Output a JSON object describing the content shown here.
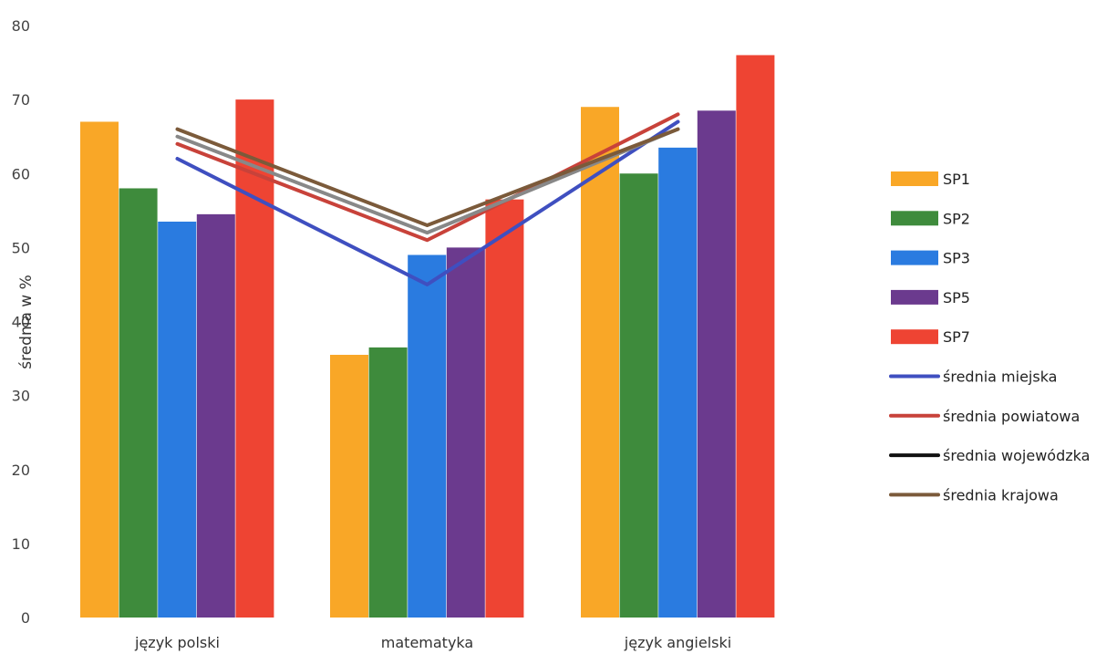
{
  "chart_data": {
    "type": "bar",
    "title": "",
    "xlabel": "",
    "ylabel": "średnia w %",
    "ylim": [
      0,
      80
    ],
    "yticks": [
      0,
      10,
      20,
      30,
      40,
      50,
      60,
      70,
      80
    ],
    "grid": false,
    "legend_position": "right",
    "categories": [
      "język polski",
      "matematyka",
      "język angielski"
    ],
    "series": [
      {
        "name": "SP1",
        "kind": "bar",
        "color": "#F9A727",
        "values": [
          67,
          35.5,
          69
        ]
      },
      {
        "name": "SP2",
        "kind": "bar",
        "color": "#3E8B3C",
        "values": [
          58,
          36.5,
          60
        ]
      },
      {
        "name": "SP3",
        "kind": "bar",
        "color": "#2A7BE0",
        "values": [
          53.5,
          49,
          63.5
        ]
      },
      {
        "name": "SP5",
        "kind": "bar",
        "color": "#6B3A8E",
        "values": [
          54.5,
          50,
          68.5
        ]
      },
      {
        "name": "SP7",
        "kind": "bar",
        "color": "#EE4433",
        "values": [
          70,
          56.5,
          76
        ]
      },
      {
        "name": "średnia miejska",
        "kind": "line",
        "color": "#3F4FC0",
        "values": [
          62,
          45,
          67
        ]
      },
      {
        "name": "średnia powiatowa",
        "kind": "line",
        "color": "#C8423A",
        "values": [
          64,
          51,
          68
        ]
      },
      {
        "name": "średnia wojewódzka",
        "kind": "line",
        "color": "#888888",
        "values": [
          65,
          52,
          66
        ]
      },
      {
        "name": "średnia krajowa",
        "kind": "line",
        "color": "#7B5A3A",
        "values": [
          66,
          53,
          66
        ]
      }
    ],
    "legend": [
      {
        "name": "SP1",
        "swatch": "bar",
        "color": "#F9A727"
      },
      {
        "name": "SP2",
        "swatch": "bar",
        "color": "#3E8B3C"
      },
      {
        "name": "SP3",
        "swatch": "bar",
        "color": "#2A7BE0"
      },
      {
        "name": "SP5",
        "swatch": "bar",
        "color": "#6B3A8E"
      },
      {
        "name": "SP7",
        "swatch": "bar",
        "color": "#EE4433"
      },
      {
        "name": "średnia miejska",
        "swatch": "line",
        "color": "#3F4FC0"
      },
      {
        "name": "średnia powiatowa",
        "swatch": "line",
        "color": "#C8423A"
      },
      {
        "name": "średnia wojewódzka",
        "swatch": "line",
        "color": "#111111"
      },
      {
        "name": "średnia krajowa",
        "swatch": "line",
        "color": "#7B5A3A"
      }
    ]
  }
}
